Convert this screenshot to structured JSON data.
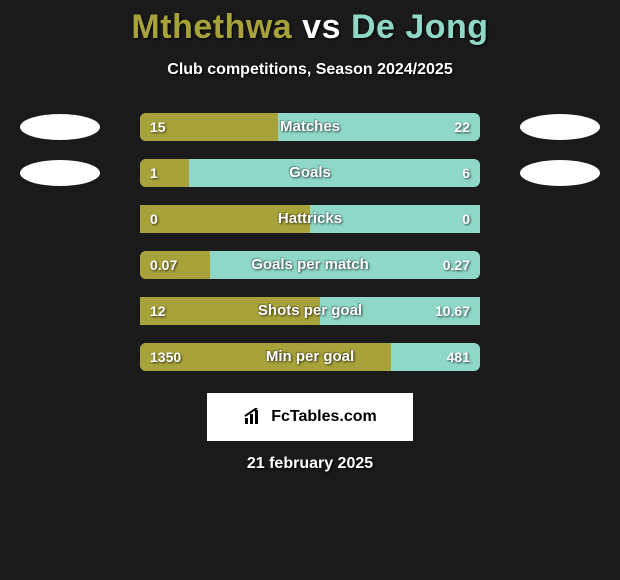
{
  "title": {
    "player1": "Mthethwa",
    "vs": "vs",
    "player2": "De Jong"
  },
  "subtitle": "Club competitions, Season 2024/2025",
  "colors": {
    "p1": "#a8a23a",
    "p2": "#8fd8c8",
    "bg": "#1a1a1a",
    "text": "#ffffff",
    "badge": "#ffffff"
  },
  "rows": [
    {
      "label": "Matches",
      "v1": "15",
      "v2": "22",
      "pct1": 40.5,
      "rounded": true,
      "badges": true
    },
    {
      "label": "Goals",
      "v1": "1",
      "v2": "6",
      "pct1": 14.3,
      "rounded": true,
      "badges": true
    },
    {
      "label": "Hattricks",
      "v1": "0",
      "v2": "0",
      "pct1": 50.0,
      "rounded": false,
      "badges": false
    },
    {
      "label": "Goals per match",
      "v1": "0.07",
      "v2": "0.27",
      "pct1": 20.6,
      "rounded": true,
      "badges": false
    },
    {
      "label": "Shots per goal",
      "v1": "12",
      "v2": "10.67",
      "pct1": 52.9,
      "rounded": false,
      "badges": false
    },
    {
      "label": "Min per goal",
      "v1": "1350",
      "v2": "481",
      "pct1": 73.7,
      "rounded": true,
      "badges": false
    }
  ],
  "footer": {
    "brand": "FcTables.com",
    "date": "21 february 2025"
  }
}
